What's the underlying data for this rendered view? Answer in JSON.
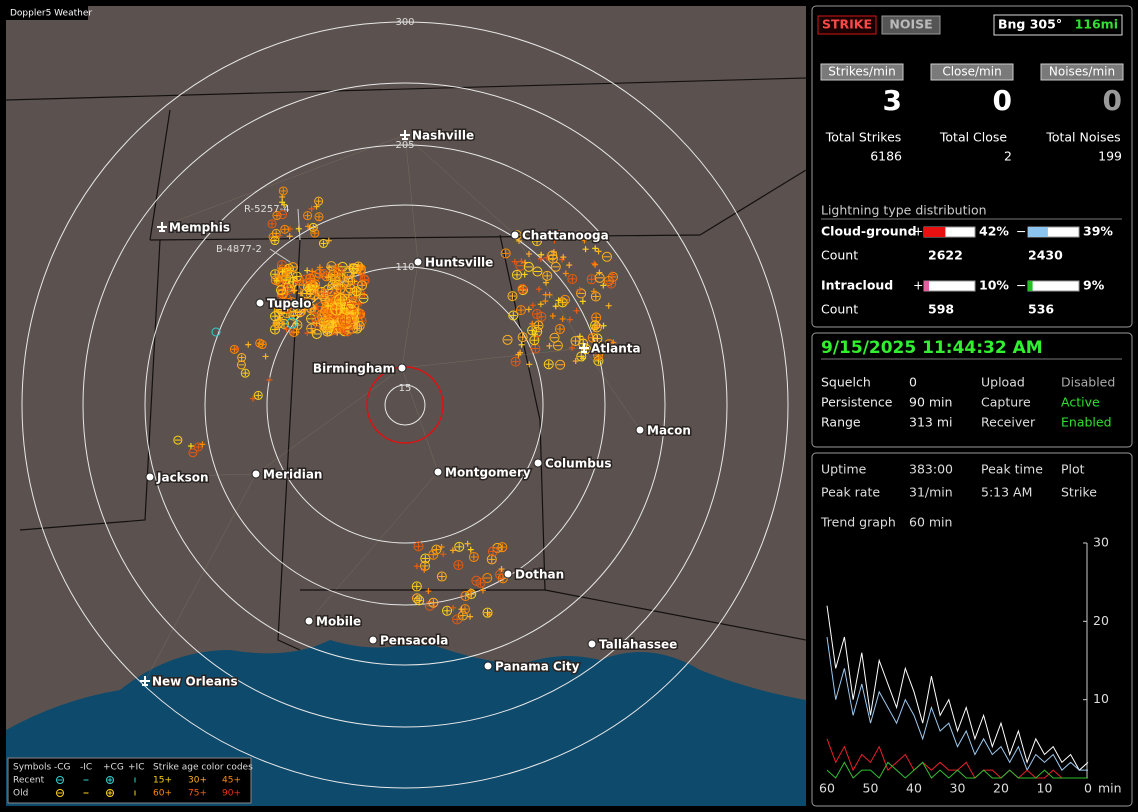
{
  "app_label": "Doppler5 Weather",
  "map": {
    "ring_labels": [
      "300",
      "205",
      "110",
      "15"
    ],
    "tracks": [
      "R-5257-4",
      "B-4877-2"
    ],
    "cities": [
      "Nashville",
      "Memphis",
      "Chattanooga",
      "Huntsville",
      "Tupelo",
      "Birmingham",
      "Atlanta",
      "Macon",
      "Jackson",
      "Meridian",
      "Montgomery",
      "Columbus",
      "Dothan",
      "Mobile",
      "Pensacola",
      "Tallahassee",
      "Panama City",
      "New Orleans"
    ],
    "legend": {
      "symbols_title": "Symbols",
      "symbol_names": [
        "-CG",
        "-IC",
        "+CG",
        "+IC"
      ],
      "age_title": "Strike age color codes",
      "rows": [
        {
          "label": "Recent",
          "ages": [
            "15+",
            "30+",
            "45+"
          ]
        },
        {
          "label": "Old",
          "ages": [
            "60+",
            "75+",
            "90+"
          ]
        }
      ]
    }
  },
  "panel": {
    "buttons": [
      "STRIKE",
      "NOISE"
    ],
    "bearing": "Bng 305°",
    "distance": "116mi",
    "rates": [
      {
        "label": "Strikes/min",
        "value": 3
      },
      {
        "label": "Close/min",
        "value": 0
      },
      {
        "label": "Noises/min",
        "value": 0
      }
    ],
    "totals": [
      {
        "label": "Total Strikes",
        "value": 6186
      },
      {
        "label": "Total Close",
        "value": 2
      },
      {
        "label": "Total Noises",
        "value": 199
      }
    ],
    "distribution": {
      "title": "Lightning type distribution",
      "count_label": "Count",
      "types": [
        {
          "name": "Cloud-ground",
          "pos_sign": "+",
          "pos_percent": 42,
          "pos_label": "42%",
          "pos_count": 2622,
          "neg_sign": "−",
          "neg_percent": 39,
          "neg_label": "39%",
          "neg_count": 2430
        },
        {
          "name": "Intracloud",
          "pos_sign": "+",
          "pos_percent": 10,
          "pos_label": "10%",
          "pos_count": 598,
          "neg_sign": "−",
          "neg_percent": 9,
          "neg_label": "9%",
          "neg_count": 536
        }
      ]
    }
  },
  "status": {
    "datetime": "9/15/2025 11:44:32 AM",
    "rows": [
      [
        "Squelch",
        "0",
        "Upload",
        "Disabled"
      ],
      [
        "Persistence",
        "90 min",
        "Capture",
        "Active"
      ],
      [
        "Range",
        "313 mi",
        "Receiver",
        "Enabled"
      ]
    ]
  },
  "stats": {
    "rows": [
      [
        "Uptime",
        "383:00",
        "Peak time",
        "Plot"
      ],
      [
        "Peak rate",
        "31/min",
        "5:13 AM",
        "Strike"
      ]
    ],
    "trend_label": "Trend graph",
    "trend_window": "60 min"
  },
  "trend_graph": {
    "type": "line",
    "x_unit": "min",
    "xlim": [
      60,
      0
    ],
    "ylim": [
      0,
      30
    ],
    "xticks": [
      60,
      50,
      40,
      30,
      20,
      10,
      0
    ],
    "yticks": [
      30,
      20,
      10
    ],
    "x": [
      60,
      58,
      56,
      54,
      52,
      50,
      48,
      46,
      44,
      42,
      40,
      38,
      36,
      34,
      32,
      30,
      28,
      26,
      24,
      22,
      20,
      18,
      16,
      14,
      12,
      10,
      8,
      6,
      4,
      2,
      0
    ],
    "series": [
      {
        "color": "#ffffff",
        "values": [
          22,
          14,
          18,
          10,
          16,
          8,
          15,
          12,
          9,
          14,
          11,
          7,
          13,
          8,
          10,
          6,
          9,
          5,
          8,
          4,
          7,
          3,
          6,
          2,
          5,
          3,
          4,
          2,
          3,
          1,
          2
        ]
      },
      {
        "color": "#9cc8ee",
        "values": [
          18,
          10,
          14,
          8,
          12,
          7,
          11,
          9,
          7,
          10,
          8,
          5,
          9,
          6,
          7,
          4,
          6,
          3,
          5,
          3,
          4,
          2,
          4,
          1,
          3,
          2,
          3,
          1,
          2,
          1,
          1
        ]
      },
      {
        "color": "#e8202a",
        "values": [
          5,
          2,
          4,
          1,
          3,
          2,
          4,
          1,
          2,
          3,
          1,
          2,
          1,
          2,
          1,
          1,
          2,
          0,
          1,
          1,
          0,
          1,
          0,
          1,
          0,
          0,
          1,
          0,
          0,
          0,
          0
        ]
      },
      {
        "color": "#30c030",
        "values": [
          1,
          0,
          2,
          0,
          1,
          1,
          0,
          2,
          1,
          0,
          1,
          2,
          0,
          1,
          0,
          1,
          0,
          0,
          1,
          0,
          0,
          1,
          0,
          0,
          0,
          1,
          0,
          0,
          0,
          0,
          0
        ]
      }
    ]
  }
}
